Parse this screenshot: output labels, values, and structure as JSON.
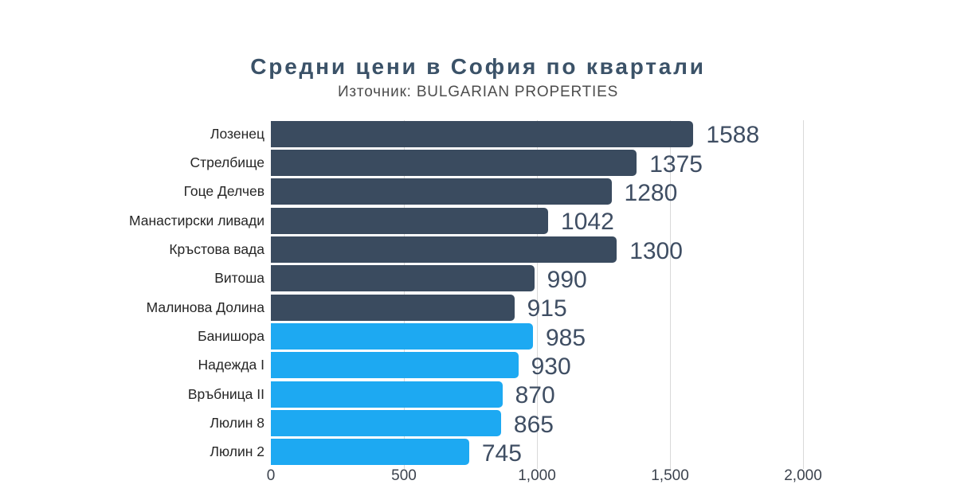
{
  "title": "Средни цени в София по квартали",
  "subtitle": "Източник: BULGARIAN PROPERTIES",
  "title_color": "#3b5268",
  "subtitle_color": "#4d4d4d",
  "chart_data": {
    "type": "bar",
    "orientation": "horizontal",
    "title": "Средни цени в София по квартали",
    "subtitle": "Източник: BULGARIAN PROPERTIES",
    "categories": [
      "Лозенец",
      "Стрелбище",
      "Гоце Делчев",
      "Манастирски ливади",
      "Кръстова вада",
      "Витоша",
      "Малинова Долина",
      "Банишора",
      "Надежда I",
      "Връбница II",
      "Люлин 8",
      "Люлин 2"
    ],
    "values": [
      1588,
      1375,
      1280,
      1042,
      1300,
      990,
      915,
      985,
      930,
      870,
      865,
      745
    ],
    "bar_color_keys": [
      "dark",
      "dark",
      "dark",
      "dark",
      "dark",
      "dark",
      "dark",
      "light",
      "light",
      "light",
      "light",
      "light"
    ],
    "colors": {
      "dark": "#3a4b5f",
      "light": "#1da9f2"
    },
    "value_label_color": "#3f4e63",
    "xlim": [
      0,
      2000
    ],
    "x_ticks": [
      "0",
      "500",
      "1,000",
      "1,500",
      "2,000"
    ],
    "x_tick_values": [
      0,
      500,
      1000,
      1500,
      2000
    ],
    "grid": "vertical",
    "gridline_color": "#d9d9d9",
    "legend": "none"
  }
}
